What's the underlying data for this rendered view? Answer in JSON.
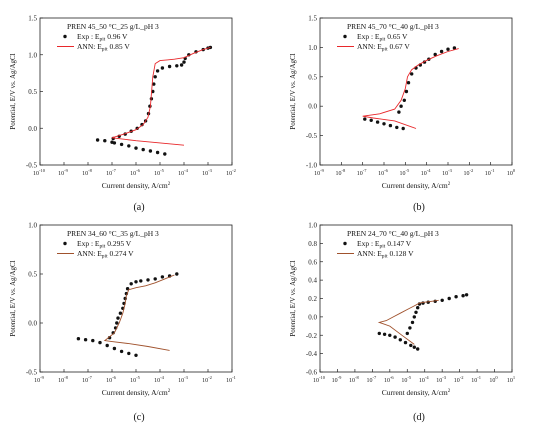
{
  "colors": {
    "exp": "#111111",
    "ann": "#e8282b",
    "ann_brown": "#a0522d",
    "axis": "#222222"
  },
  "chart_data": [
    {
      "type": "scatter",
      "panel_label": "(a)",
      "title": "PREN 45_50 °C_25 g/L_pH 3",
      "xlabel": "Current density, A/cm",
      "xlabel_sup": "2",
      "ylabel": "Potential, E/V vs. Ag/AgCl",
      "xscale": "log",
      "xlim_exp": [
        -10,
        -2
      ],
      "ylim": [
        -0.5,
        1.5
      ],
      "xticks_exp": [
        -10,
        -9,
        -8,
        -7,
        -6,
        -5,
        -4,
        -3,
        -2
      ],
      "yticks": [
        "-0.5",
        "0.0",
        "0.5",
        "1.0",
        "1.5"
      ],
      "legend_position": "top-left",
      "series": [
        {
          "name": "Exp : E",
          "name_sub": "pit",
          "name_tail": " 0.96 V",
          "kind": "points",
          "points": [
            [
              -7.6,
              -0.16
            ],
            [
              -7.3,
              -0.17
            ],
            [
              -7.0,
              -0.19
            ],
            [
              -6.9,
              -0.2
            ],
            [
              -6.6,
              -0.22
            ],
            [
              -6.3,
              -0.24
            ],
            [
              -6.0,
              -0.27
            ],
            [
              -5.7,
              -0.29
            ],
            [
              -5.4,
              -0.31
            ],
            [
              -5.1,
              -0.33
            ],
            [
              -4.8,
              -0.35
            ],
            [
              -6.95,
              -0.14
            ],
            [
              -6.7,
              -0.11
            ],
            [
              -6.45,
              -0.08
            ],
            [
              -6.2,
              -0.04
            ],
            [
              -5.95,
              0.0
            ],
            [
              -5.75,
              0.05
            ],
            [
              -5.6,
              0.1
            ],
            [
              -5.48,
              0.2
            ],
            [
              -5.42,
              0.3
            ],
            [
              -5.36,
              0.4
            ],
            [
              -5.3,
              0.5
            ],
            [
              -5.26,
              0.6
            ],
            [
              -5.2,
              0.7
            ],
            [
              -5.1,
              0.78
            ],
            [
              -4.9,
              0.82
            ],
            [
              -4.6,
              0.84
            ],
            [
              -4.3,
              0.85
            ],
            [
              -4.1,
              0.86
            ],
            [
              -4.0,
              0.9
            ],
            [
              -3.95,
              0.95
            ],
            [
              -3.8,
              1.0
            ],
            [
              -3.5,
              1.04
            ],
            [
              -3.2,
              1.07
            ],
            [
              -3.0,
              1.09
            ],
            [
              -2.9,
              1.1
            ]
          ]
        },
        {
          "name": "ANN: E",
          "name_sub": "pit",
          "name_tail": " 0.85 V",
          "kind": "line",
          "color_key": "ann",
          "points": [
            [
              -4.0,
              -0.23
            ],
            [
              -5.0,
              -0.2
            ],
            [
              -6.0,
              -0.17
            ],
            [
              -7.0,
              -0.13
            ],
            [
              -6.5,
              -0.08
            ],
            [
              -6.0,
              -0.02
            ],
            [
              -5.7,
              0.05
            ],
            [
              -5.5,
              0.15
            ],
            [
              -5.4,
              0.3
            ],
            [
              -5.35,
              0.5
            ],
            [
              -5.3,
              0.7
            ],
            [
              -5.2,
              0.88
            ],
            [
              -5.0,
              0.92
            ],
            [
              -4.7,
              0.93
            ],
            [
              -4.4,
              0.94
            ],
            [
              -4.0,
              0.96
            ],
            [
              -3.6,
              1.02
            ],
            [
              -3.2,
              1.07
            ],
            [
              -2.9,
              1.1
            ]
          ]
        }
      ]
    },
    {
      "type": "scatter",
      "panel_label": "(b)",
      "title": "PREN 45_70 °C_40 g/L_pH 3",
      "xlabel": "Current density, A/cm",
      "xlabel_sup": "2",
      "ylabel": "Potential, E/V vs. Ag/AgCl",
      "xscale": "log",
      "xlim_exp": [
        -9,
        0
      ],
      "ylim": [
        -1.0,
        1.5
      ],
      "xticks_exp": [
        -9,
        -8,
        -7,
        -6,
        -5,
        -4,
        -3,
        -2,
        -1,
        0
      ],
      "yticks": [
        "-1.0",
        "-0.5",
        "0.0",
        "0.5",
        "1.0",
        "1.5"
      ],
      "legend_position": "top-left",
      "series": [
        {
          "name": "Exp : E",
          "name_sub": "pit",
          "name_tail": " 0.65 V",
          "kind": "points",
          "points": [
            [
              -6.9,
              -0.22
            ],
            [
              -6.6,
              -0.24
            ],
            [
              -6.3,
              -0.27
            ],
            [
              -6.0,
              -0.3
            ],
            [
              -5.7,
              -0.33
            ],
            [
              -5.4,
              -0.36
            ],
            [
              -5.1,
              -0.38
            ],
            [
              -5.3,
              -0.1
            ],
            [
              -5.2,
              0.0
            ],
            [
              -5.05,
              0.1
            ],
            [
              -4.95,
              0.25
            ],
            [
              -4.85,
              0.4
            ],
            [
              -4.7,
              0.55
            ],
            [
              -4.5,
              0.65
            ],
            [
              -4.3,
              0.7
            ],
            [
              -4.1,
              0.75
            ],
            [
              -3.9,
              0.8
            ],
            [
              -3.6,
              0.88
            ],
            [
              -3.3,
              0.93
            ],
            [
              -3.0,
              0.97
            ],
            [
              -2.7,
              0.99
            ]
          ]
        },
        {
          "name": "ANN: E",
          "name_sub": "pit",
          "name_tail": " 0.67 V",
          "kind": "line",
          "color_key": "ann",
          "points": [
            [
              -4.5,
              -0.38
            ],
            [
              -5.5,
              -0.25
            ],
            [
              -6.5,
              -0.2
            ],
            [
              -7.0,
              -0.17
            ],
            [
              -6.2,
              -0.13
            ],
            [
              -5.5,
              -0.05
            ],
            [
              -5.2,
              0.1
            ],
            [
              -5.0,
              0.3
            ],
            [
              -4.9,
              0.5
            ],
            [
              -4.7,
              0.62
            ],
            [
              -4.4,
              0.7
            ],
            [
              -4.0,
              0.78
            ],
            [
              -3.5,
              0.86
            ],
            [
              -3.0,
              0.93
            ],
            [
              -2.5,
              0.98
            ]
          ]
        }
      ]
    },
    {
      "type": "scatter",
      "panel_label": "(c)",
      "title": "PREN 34_60 °C_35 g/L_pH 3",
      "xlabel": "Current density, A/cm",
      "xlabel_sup": "2",
      "ylabel": "Potential, E/V vs. Ag/AgCl",
      "xscale": "log",
      "xlim_exp": [
        -9,
        -1
      ],
      "ylim": [
        -0.5,
        1.0
      ],
      "xticks_exp": [
        -9,
        -8,
        -7,
        -6,
        -5,
        -4,
        -3,
        -2,
        -1
      ],
      "yticks": [
        "-0.5",
        "0.0",
        "0.5",
        "1.0"
      ],
      "legend_position": "top-left",
      "series": [
        {
          "name": "Exp : E",
          "name_sub": "pit",
          "name_tail": " 0.295 V",
          "kind": "points",
          "points": [
            [
              -7.4,
              -0.16
            ],
            [
              -7.1,
              -0.17
            ],
            [
              -6.8,
              -0.18
            ],
            [
              -6.5,
              -0.2
            ],
            [
              -6.2,
              -0.23
            ],
            [
              -5.9,
              -0.26
            ],
            [
              -5.6,
              -0.29
            ],
            [
              -5.3,
              -0.31
            ],
            [
              -5.0,
              -0.33
            ],
            [
              -6.1,
              -0.15
            ],
            [
              -5.95,
              -0.1
            ],
            [
              -5.85,
              -0.05
            ],
            [
              -5.8,
              0.0
            ],
            [
              -5.75,
              0.05
            ],
            [
              -5.65,
              0.1
            ],
            [
              -5.55,
              0.15
            ],
            [
              -5.5,
              0.2
            ],
            [
              -5.45,
              0.25
            ],
            [
              -5.4,
              0.3
            ],
            [
              -5.35,
              0.35
            ],
            [
              -5.2,
              0.4
            ],
            [
              -5.0,
              0.42
            ],
            [
              -4.8,
              0.43
            ],
            [
              -4.5,
              0.44
            ],
            [
              -4.2,
              0.45
            ],
            [
              -3.9,
              0.47
            ],
            [
              -3.6,
              0.48
            ],
            [
              -3.3,
              0.5
            ]
          ]
        },
        {
          "name": "ANN: E",
          "name_sub": "pit",
          "name_tail": " 0.274 V",
          "kind": "line",
          "color_key": "ann_brown",
          "points": [
            [
              -3.6,
              -0.28
            ],
            [
              -4.5,
              -0.24
            ],
            [
              -5.3,
              -0.21
            ],
            [
              -6.0,
              -0.19
            ],
            [
              -6.3,
              -0.18
            ],
            [
              -5.9,
              -0.1
            ],
            [
              -5.7,
              0.0
            ],
            [
              -5.55,
              0.1
            ],
            [
              -5.45,
              0.2
            ],
            [
              -5.4,
              0.28
            ],
            [
              -5.3,
              0.34
            ],
            [
              -5.0,
              0.36
            ],
            [
              -4.6,
              0.38
            ],
            [
              -4.2,
              0.41
            ],
            [
              -3.8,
              0.45
            ],
            [
              -3.4,
              0.49
            ]
          ]
        }
      ]
    },
    {
      "type": "scatter",
      "panel_label": "(d)",
      "title": "PREN 24_70 °C_40 g/L_pH 3",
      "xlabel": "Current density, A/cm",
      "xlabel_sup": "2",
      "ylabel": "Potential, E/V vs. Ag/AgCl",
      "xscale": "log",
      "xlim_exp": [
        -10,
        1
      ],
      "ylim": [
        -0.6,
        1.0
      ],
      "xticks_exp": [
        -10,
        -9,
        -8,
        -7,
        -6,
        -5,
        -4,
        -3,
        -2,
        -1,
        0,
        1
      ],
      "yticks": [
        "-0.6",
        "-0.4",
        "-0.2",
        "0.0",
        "0.2",
        "0.4",
        "0.6",
        "0.8",
        "1.0"
      ],
      "legend_position": "top-left",
      "series": [
        {
          "name": "Exp : E",
          "name_sub": "pit",
          "name_tail": " 0.147 V",
          "kind": "points",
          "points": [
            [
              -6.6,
              -0.18
            ],
            [
              -6.3,
              -0.19
            ],
            [
              -6.0,
              -0.2
            ],
            [
              -5.7,
              -0.22
            ],
            [
              -5.4,
              -0.25
            ],
            [
              -5.1,
              -0.28
            ],
            [
              -4.8,
              -0.31
            ],
            [
              -4.6,
              -0.33
            ],
            [
              -4.4,
              -0.35
            ],
            [
              -5.0,
              -0.18
            ],
            [
              -4.85,
              -0.12
            ],
            [
              -4.7,
              -0.06
            ],
            [
              -4.6,
              0.0
            ],
            [
              -4.5,
              0.05
            ],
            [
              -4.4,
              0.1
            ],
            [
              -4.3,
              0.14
            ],
            [
              -4.1,
              0.15
            ],
            [
              -3.8,
              0.16
            ],
            [
              -3.4,
              0.17
            ],
            [
              -3.0,
              0.18
            ],
            [
              -2.6,
              0.2
            ],
            [
              -2.2,
              0.22
            ],
            [
              -1.8,
              0.23
            ],
            [
              -1.6,
              0.24
            ]
          ]
        },
        {
          "name": "ANN: E",
          "name_sub": "pit",
          "name_tail": " 0.128 V",
          "kind": "line",
          "color_key": "ann_brown",
          "points": [
            [
              -4.6,
              -0.3
            ],
            [
              -5.3,
              -0.2
            ],
            [
              -6.0,
              -0.1
            ],
            [
              -6.6,
              -0.06
            ],
            [
              -6.2,
              -0.04
            ],
            [
              -5.8,
              0.0
            ],
            [
              -5.4,
              0.04
            ],
            [
              -5.0,
              0.08
            ],
            [
              -4.6,
              0.12
            ],
            [
              -4.3,
              0.15
            ],
            [
              -4.0,
              0.16
            ],
            [
              -3.6,
              0.17
            ],
            [
              -3.2,
              0.18
            ]
          ]
        }
      ]
    }
  ]
}
